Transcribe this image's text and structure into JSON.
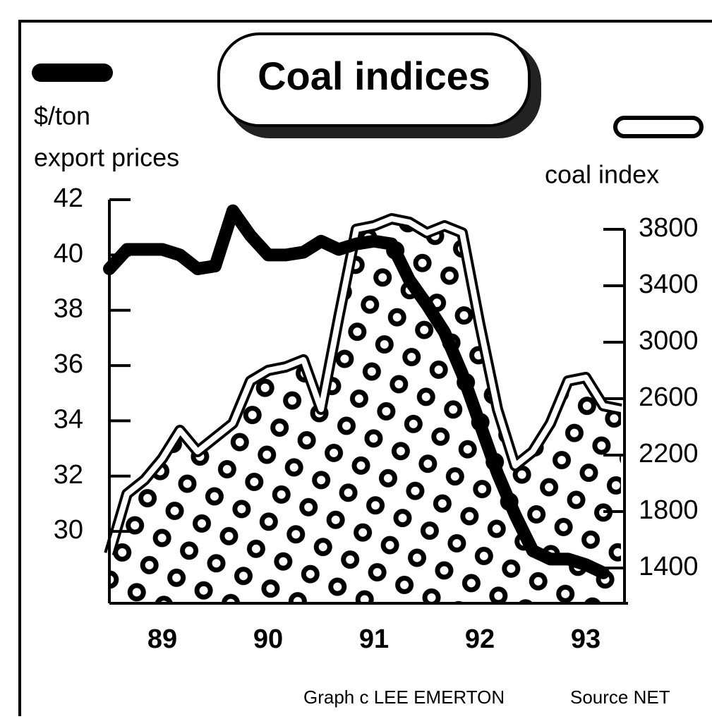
{
  "chart_data": {
    "type": "line",
    "title": "Coal indices",
    "ylabel_lines": [
      "$/ton",
      "export prices"
    ],
    "y2label": "coal index",
    "categories": [
      null,
      null,
      null,
      "89",
      null,
      null,
      null,
      null,
      null,
      "90",
      null,
      null,
      null,
      null,
      null,
      "91",
      null,
      null,
      null,
      null,
      null,
      "92",
      null,
      null,
      null,
      null,
      null,
      "93",
      null,
      null
    ],
    "series": [
      {
        "color": "#000000",
        "values": [
          39.5,
          40.2,
          40.2,
          40.2,
          40.0,
          39.5,
          39.6,
          41.6,
          40.7,
          40.0,
          40.0,
          40.1,
          40.5,
          40.2,
          40.4,
          40.5,
          40.4,
          39.1,
          38.2,
          37.2,
          35.7,
          33.9,
          32.1,
          30.6,
          29.3,
          29.0,
          29.0,
          28.8,
          28.5,
          null
        ]
      },
      {
        "color": "#ffffff",
        "axis": "y2",
        "values": [
          1500,
          1925,
          2025,
          2175,
          2375,
          2225,
          2325,
          2425,
          2725,
          2800,
          2825,
          2875,
          2525,
          3175,
          3800,
          3825,
          3875,
          3850,
          3775,
          3825,
          3775,
          3125,
          2525,
          2125,
          2225,
          2425,
          2725,
          2750,
          2550,
          2525
        ]
      }
    ],
    "ylim": [
      27.4,
      42
    ],
    "yticks": [
      30,
      32,
      34,
      36,
      38,
      40,
      42
    ],
    "y2lim": [
      1150,
      4010
    ],
    "y2ticks": [
      1400,
      1800,
      2200,
      2600,
      3000,
      3400,
      3800
    ],
    "credit": "Graph c LEE EMERTON",
    "source": "Source  NET"
  }
}
